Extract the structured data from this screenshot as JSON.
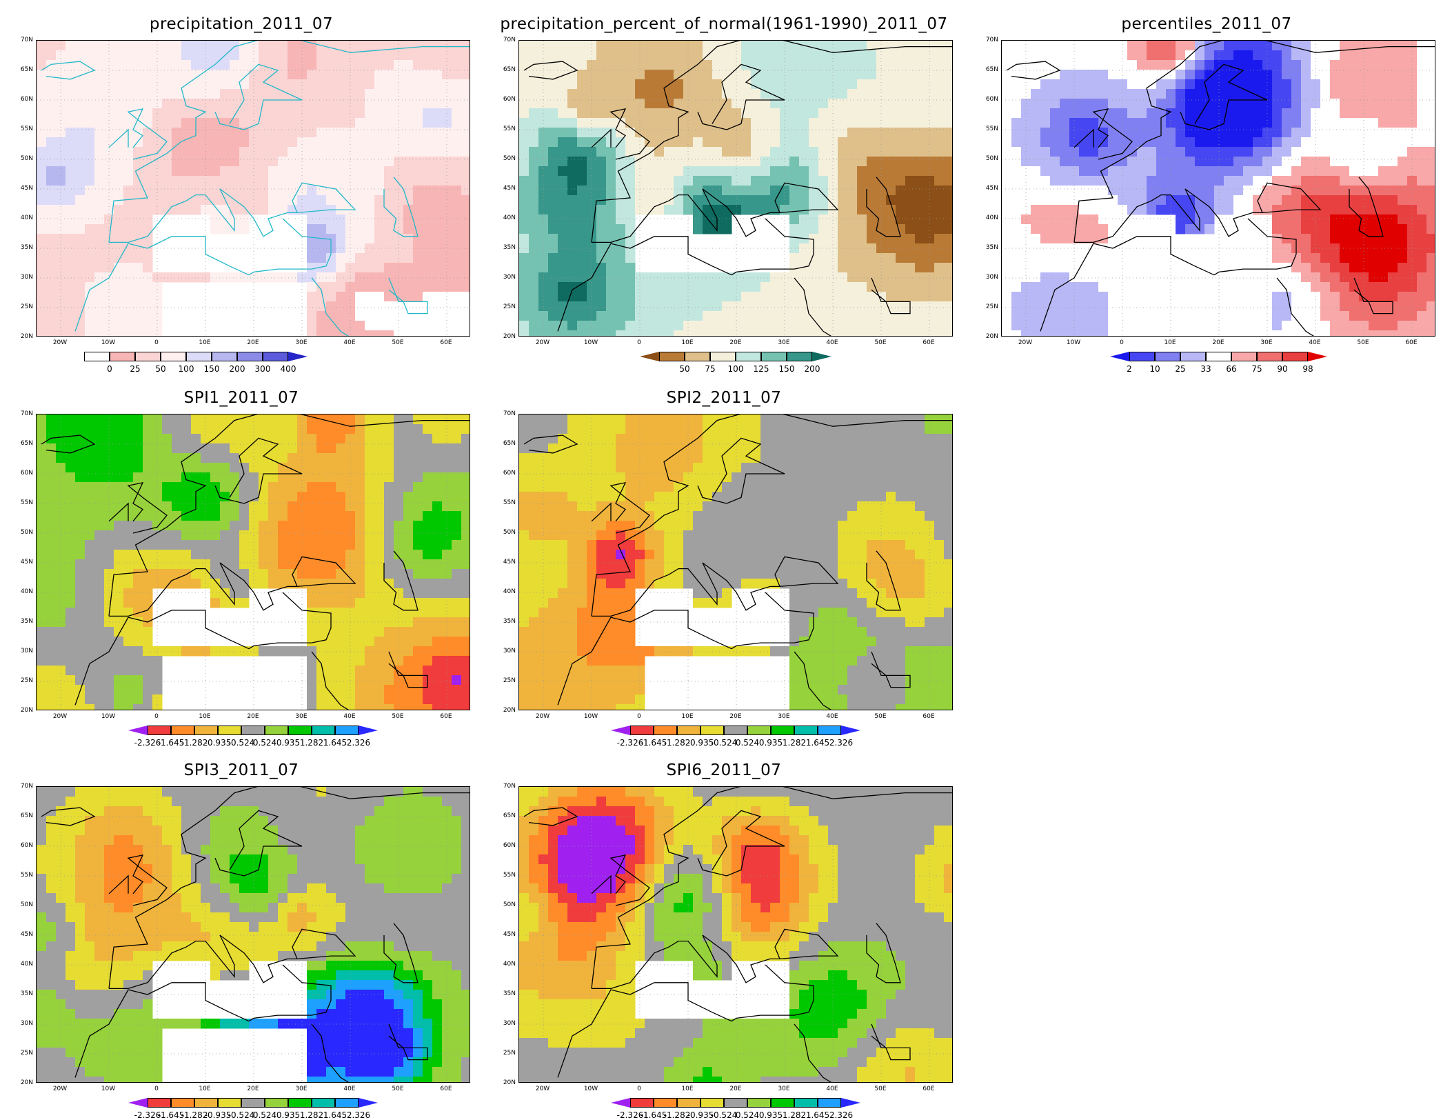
{
  "panels": [
    {
      "id": "p1",
      "title": "precipitation_2011_07",
      "colorbar": {
        "colors": [
          "#ffffff",
          "#f8b5b5",
          "#fbd4d4",
          "#fff0f0",
          "#dcdcf8",
          "#b7b7f0",
          "#8c8ce8",
          "#5b5bdc",
          "#2525c8"
        ],
        "labels": [
          "0",
          "25",
          "50",
          "100",
          "150",
          "200",
          "300",
          "400"
        ],
        "has_left_arrow": false,
        "has_right_arrow": true
      }
    },
    {
      "id": "p2",
      "title": "precipitation_percent_of_normal(1961-1990)_2011_07",
      "colorbar": {
        "colors": [
          "#8b4f17",
          "#b97a36",
          "#dfc08a",
          "#f5f0dc",
          "#c2e7df",
          "#76c2b2",
          "#37978a",
          "#0f6b60"
        ],
        "labels": [
          "50",
          "75",
          "100",
          "125",
          "150",
          "200"
        ],
        "has_left_arrow": true,
        "has_right_arrow": true
      }
    },
    {
      "id": "p3",
      "title": "percentiles_2011_07",
      "colorbar": {
        "colors": [
          "#1a1aee",
          "#4646f2",
          "#8080f2",
          "#b8b8f6",
          "#ffffff",
          "#f8a8a8",
          "#f07070",
          "#e84040",
          "#e00000"
        ],
        "labels": [
          "2",
          "10",
          "25",
          "33",
          "66",
          "75",
          "90",
          "98"
        ],
        "has_left_arrow": true,
        "has_right_arrow": true
      }
    },
    {
      "id": "p4",
      "title": "SPI1_2011_07",
      "colorbar": {
        "colors": [
          "#a020f0",
          "#f03c3c",
          "#ff8c28",
          "#f0b43c",
          "#e6dc32",
          "#a0a0a0",
          "#96d23c",
          "#00c800",
          "#00beaa",
          "#1ea0ff",
          "#2828ff"
        ],
        "labels": [
          "-2.326",
          "-1.645",
          "-1.282",
          "-0.935",
          "-0.524",
          "0.524",
          "0.935",
          "1.282",
          "1.645",
          "2.326"
        ],
        "has_left_arrow": true,
        "has_right_arrow": true
      }
    },
    {
      "id": "p5",
      "title": "SPI2_2011_07",
      "colorbar": {
        "colors": [
          "#a020f0",
          "#f03c3c",
          "#ff8c28",
          "#f0b43c",
          "#e6dc32",
          "#a0a0a0",
          "#96d23c",
          "#00c800",
          "#00beaa",
          "#1ea0ff",
          "#2828ff"
        ],
        "labels": [
          "-2.326",
          "-1.645",
          "-1.282",
          "-0.935",
          "-0.524",
          "0.524",
          "0.935",
          "1.282",
          "1.645",
          "2.326"
        ],
        "has_left_arrow": true,
        "has_right_arrow": true
      }
    },
    {
      "id": "p6",
      "title": "SPI3_2011_07",
      "colorbar": {
        "colors": [
          "#a020f0",
          "#f03c3c",
          "#ff8c28",
          "#f0b43c",
          "#e6dc32",
          "#a0a0a0",
          "#96d23c",
          "#00c800",
          "#00beaa",
          "#1ea0ff",
          "#2828ff"
        ],
        "labels": [
          "-2.326",
          "-1.645",
          "-1.282",
          "-0.935",
          "-0.524",
          "0.524",
          "0.935",
          "1.282",
          "1.645",
          "2.326"
        ],
        "has_left_arrow": true,
        "has_right_arrow": true
      }
    },
    {
      "id": "p7",
      "title": "SPI6_2011_07",
      "colorbar": {
        "colors": [
          "#a020f0",
          "#f03c3c",
          "#ff8c28",
          "#f0b43c",
          "#e6dc32",
          "#a0a0a0",
          "#96d23c",
          "#00c800",
          "#00beaa",
          "#1ea0ff",
          "#2828ff"
        ],
        "labels": [
          "-2.326",
          "-1.645",
          "-1.282",
          "-0.935",
          "-0.524",
          "0.524",
          "0.935",
          "1.282",
          "1.645",
          "2.326"
        ],
        "has_left_arrow": true,
        "has_right_arrow": true
      }
    }
  ],
  "lat_labels": [
    "70N",
    "65N",
    "60N",
    "55N",
    "50N",
    "45N",
    "40N",
    "35N",
    "30N",
    "25N",
    "20N"
  ],
  "lon_labels": [
    "20W",
    "10W",
    "0",
    "10E",
    "20E",
    "30E",
    "40E",
    "50E",
    "60E"
  ]
}
